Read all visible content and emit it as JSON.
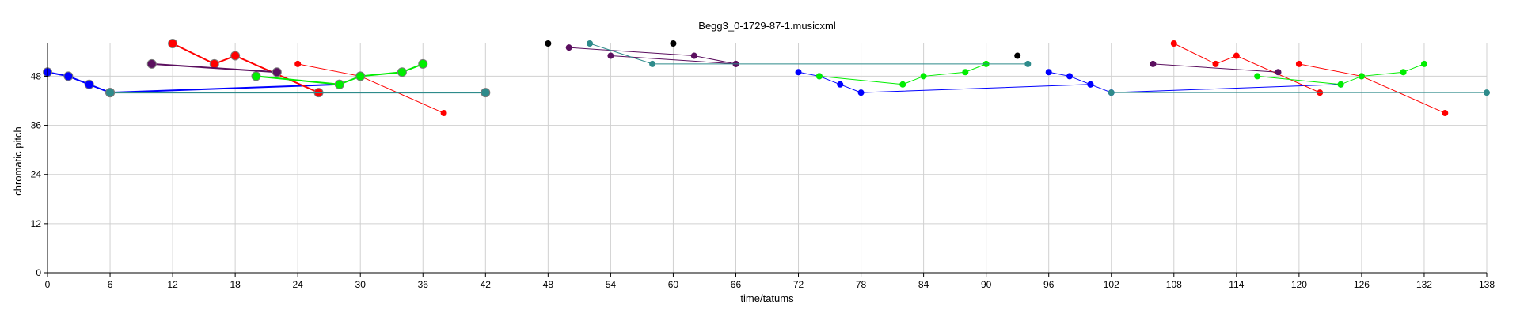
{
  "chart_data": {
    "type": "scatter",
    "title": "Begg3_0-1729-87-1.musicxml",
    "xlabel": "time/tatums",
    "ylabel": "chromatic pitch",
    "xlim": [
      0,
      138
    ],
    "ylim": [
      0,
      56
    ],
    "xticks": [
      0,
      6,
      12,
      18,
      24,
      30,
      36,
      42,
      48,
      54,
      60,
      66,
      72,
      78,
      84,
      90,
      96,
      102,
      108,
      114,
      120,
      126,
      132,
      138
    ],
    "yticks": [
      0,
      12,
      24,
      36,
      48
    ],
    "grid": true,
    "legend": "none",
    "series": [
      {
        "color": "#0000ff",
        "size": "large",
        "points": [
          [
            0,
            49
          ],
          [
            2,
            48
          ],
          [
            4,
            46
          ],
          [
            6,
            44
          ],
          [
            28,
            46
          ]
        ]
      },
      {
        "color": "#0000ff",
        "size": "small",
        "points": [
          [
            72,
            49
          ],
          [
            74,
            48
          ],
          [
            76,
            46
          ],
          [
            78,
            44
          ],
          [
            100,
            46
          ]
        ]
      },
      {
        "color": "#0000ff",
        "size": "small",
        "points": [
          [
            96,
            49
          ],
          [
            98,
            48
          ],
          [
            100,
            46
          ],
          [
            102,
            44
          ],
          [
            124,
            46
          ]
        ]
      },
      {
        "color": "#ff0000",
        "size": "large",
        "points": [
          [
            12,
            56
          ],
          [
            16,
            51
          ],
          [
            18,
            53
          ],
          [
            26,
            44
          ]
        ]
      },
      {
        "color": "#ff0000",
        "size": "small",
        "points": [
          [
            24,
            51
          ],
          [
            30,
            48
          ],
          [
            38,
            39
          ]
        ]
      },
      {
        "color": "#ff0000",
        "size": "small",
        "points": [
          [
            108,
            56
          ],
          [
            112,
            51
          ],
          [
            114,
            53
          ],
          [
            122,
            44
          ]
        ]
      },
      {
        "color": "#ff0000",
        "size": "small",
        "points": [
          [
            120,
            51
          ],
          [
            126,
            48
          ],
          [
            134,
            39
          ]
        ]
      },
      {
        "color": "#00ee00",
        "size": "large",
        "points": [
          [
            20,
            48
          ],
          [
            28,
            46
          ],
          [
            30,
            48
          ],
          [
            34,
            49
          ],
          [
            36,
            51
          ]
        ]
      },
      {
        "color": "#00ee00",
        "size": "small",
        "points": [
          [
            74,
            48
          ],
          [
            82,
            46
          ],
          [
            84,
            48
          ],
          [
            88,
            49
          ],
          [
            90,
            51
          ]
        ]
      },
      {
        "color": "#00ee00",
        "size": "small",
        "points": [
          [
            116,
            48
          ],
          [
            124,
            46
          ],
          [
            126,
            48
          ],
          [
            130,
            49
          ],
          [
            132,
            51
          ]
        ]
      },
      {
        "color": "#5b0f5f",
        "size": "large",
        "points": [
          [
            10,
            51
          ],
          [
            22,
            49
          ]
        ]
      },
      {
        "color": "#5b0f5f",
        "size": "small",
        "points": [
          [
            50,
            55
          ],
          [
            62,
            53
          ],
          [
            66,
            51
          ]
        ]
      },
      {
        "color": "#5b0f5f",
        "size": "small",
        "points": [
          [
            54,
            53
          ],
          [
            66,
            51
          ]
        ]
      },
      {
        "color": "#5b0f5f",
        "size": "small",
        "points": [
          [
            106,
            51
          ],
          [
            118,
            49
          ]
        ]
      },
      {
        "color": "#2e8b8b",
        "size": "large",
        "points": [
          [
            6,
            44
          ],
          [
            42,
            44
          ]
        ]
      },
      {
        "color": "#2e8b8b",
        "size": "small",
        "points": [
          [
            52,
            56
          ],
          [
            58,
            51
          ],
          [
            94,
            51
          ]
        ]
      },
      {
        "color": "#2e8b8b",
        "size": "small",
        "points": [
          [
            102,
            44
          ],
          [
            138,
            44
          ]
        ]
      },
      {
        "color": "#000000",
        "size": "small",
        "points": [
          [
            48,
            56
          ]
        ]
      },
      {
        "color": "#000000",
        "size": "small",
        "points": [
          [
            60,
            56
          ]
        ]
      },
      {
        "color": "#000000",
        "size": "small",
        "points": [
          [
            93,
            53
          ]
        ]
      }
    ]
  }
}
